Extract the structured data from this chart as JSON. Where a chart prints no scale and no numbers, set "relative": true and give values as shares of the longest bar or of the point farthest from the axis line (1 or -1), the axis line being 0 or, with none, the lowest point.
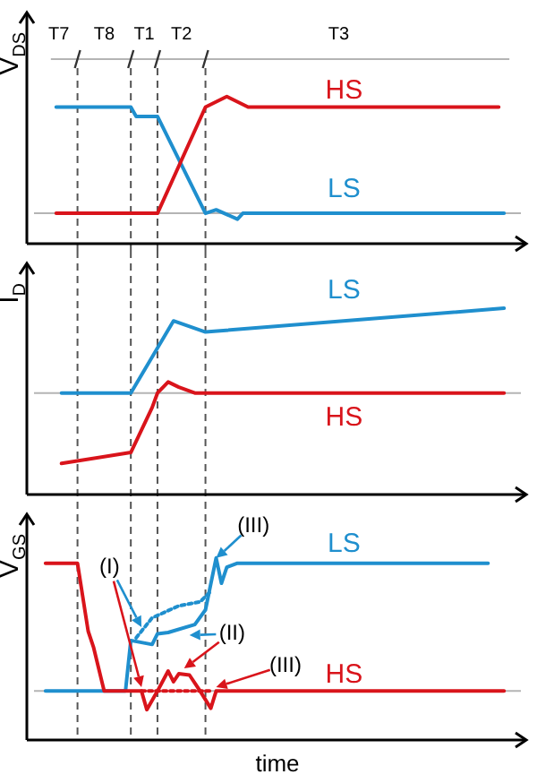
{
  "chart_data": [
    {
      "type": "line",
      "relative": true,
      "ylabel": "V$_{DS}$",
      "categories": [
        null,
        null,
        null,
        null,
        null,
        null,
        null,
        null,
        null,
        null,
        null,
        null,
        null,
        null,
        null,
        null,
        null,
        null,
        null,
        null,
        null,
        null,
        null,
        null,
        null,
        null,
        null,
        null,
        null,
        null,
        null,
        null,
        null,
        null,
        null,
        null,
        null,
        null,
        null,
        null,
        null,
        null,
        null,
        null,
        null,
        null,
        null,
        null,
        null,
        null,
        null,
        null,
        null,
        null,
        null,
        null,
        null,
        null,
        null,
        null,
        null,
        null,
        null,
        null,
        null,
        null,
        null,
        null,
        null,
        null,
        null,
        null,
        null,
        null,
        null,
        null,
        null,
        null,
        null,
        null,
        null,
        null,
        null,
        null,
        null,
        null,
        null,
        null,
        null
      ],
      "series": [
        {
          "name": "HS",
          "color": "#d9141b",
          "values": [
            null,
            null,
            null,
            0,
            null,
            null,
            null,
            null,
            null,
            null,
            null,
            null,
            null,
            null,
            null,
            null,
            null,
            null,
            null,
            null,
            null,
            null,
            0,
            null,
            null,
            null,
            null,
            null,
            null,
            null,
            null,
            0.91,
            null,
            null,
            null,
            1,
            null,
            null,
            null,
            0.91,
            null,
            null,
            null,
            null,
            null,
            null,
            null,
            null,
            null,
            null,
            null,
            null,
            null,
            null,
            null,
            null,
            null,
            null,
            null,
            null,
            null,
            null,
            null,
            null,
            null,
            null,
            null,
            null,
            null,
            null,
            null,
            null,
            null,
            null,
            null,
            null,
            null,
            null,
            null,
            null,
            null,
            null,
            null,
            null,
            null,
            null,
            0.91,
            null,
            null
          ]
        },
        {
          "name": "LS",
          "color": "#1f8fce",
          "values": [
            null,
            null,
            null,
            0.91,
            null,
            null,
            null,
            null,
            null,
            null,
            null,
            null,
            null,
            null,
            null,
            null,
            null,
            0.91,
            0.83,
            null,
            null,
            null,
            0.83,
            null,
            null,
            null,
            null,
            null,
            null,
            null,
            null,
            0,
            null,
            0.03,
            null,
            null,
            null,
            -0.05,
            0,
            null,
            null,
            null,
            null,
            null,
            null,
            null,
            null,
            null,
            null,
            null,
            null,
            null,
            null,
            null,
            null,
            null,
            null,
            null,
            null,
            null,
            null,
            null,
            null,
            null,
            null,
            null,
            null,
            null,
            null,
            null,
            null,
            null,
            null,
            null,
            null,
            null,
            null,
            null,
            null,
            null,
            null,
            null,
            null,
            null,
            null,
            null,
            null,
            0,
            null
          ]
        }
      ],
      "ref_lines": [
        {
          "axis": "y",
          "value": 0,
          "color": "#b4b4b4",
          "line_style": "solid"
        }
      ],
      "annotations": [
        "T7",
        "T8",
        "T1",
        "T2",
        "T3"
      ]
    },
    {
      "type": "line",
      "relative": true,
      "ylabel": "I$_{D}$",
      "categories": [
        null,
        null,
        null,
        null,
        null,
        null,
        null,
        null,
        null,
        null,
        null,
        null,
        null,
        null,
        null,
        null,
        null,
        null,
        null,
        null,
        null,
        null,
        null,
        null,
        null,
        null,
        null,
        null,
        null,
        null,
        null,
        null,
        null,
        null,
        null,
        null,
        null,
        null,
        null,
        null,
        null,
        null,
        null,
        null,
        null,
        null,
        null,
        null,
        null,
        null,
        null,
        null,
        null,
        null,
        null,
        null,
        null,
        null,
        null,
        null,
        null,
        null,
        null,
        null,
        null,
        null,
        null,
        null,
        null,
        null,
        null,
        null,
        null,
        null,
        null,
        null,
        null,
        null,
        null,
        null,
        null,
        null,
        null,
        null,
        null,
        null,
        null,
        null,
        null
      ],
      "series": [
        {
          "name": "HS",
          "color": "#d9141b",
          "values": [
            null,
            null,
            null,
            null,
            -0.83,
            null,
            null,
            null,
            null,
            null,
            null,
            null,
            null,
            null,
            null,
            null,
            null,
            -0.7,
            null,
            null,
            null,
            -0.17,
            0,
            null,
            0.13,
            null,
            0.07,
            null,
            null,
            0,
            null,
            null,
            null,
            null,
            null,
            null,
            null,
            null,
            null,
            null,
            null,
            null,
            null,
            null,
            null,
            null,
            null,
            null,
            null,
            null,
            null,
            null,
            null,
            null,
            null,
            null,
            null,
            null,
            null,
            null,
            null,
            null,
            null,
            null,
            null,
            null,
            null,
            null,
            null,
            null,
            null,
            null,
            null,
            null,
            null,
            null,
            null,
            null,
            null,
            null,
            null,
            null,
            null,
            null,
            null,
            null,
            null,
            0,
            null
          ]
        },
        {
          "name": "LS",
          "color": "#1f8fce",
          "values": [
            null,
            null,
            null,
            null,
            0,
            null,
            null,
            null,
            null,
            null,
            null,
            null,
            null,
            null,
            null,
            null,
            null,
            0,
            null,
            null,
            null,
            null,
            null,
            null,
            null,
            0.85,
            null,
            null,
            null,
            null,
            null,
            0.72,
            null,
            null,
            null,
            null,
            null,
            null,
            null,
            null,
            null,
            null,
            null,
            null,
            null,
            null,
            null,
            null,
            null,
            null,
            null,
            null,
            null,
            null,
            null,
            null,
            null,
            null,
            null,
            null,
            null,
            null,
            null,
            null,
            null,
            null,
            null,
            null,
            null,
            null,
            null,
            null,
            null,
            null,
            null,
            null,
            null,
            null,
            null,
            null,
            null,
            null,
            null,
            null,
            null,
            null,
            null,
            1,
            null
          ]
        }
      ],
      "ref_lines": [
        {
          "axis": "y",
          "value": 0,
          "color": "#b4b4b4",
          "line_style": "solid"
        }
      ]
    },
    {
      "type": "line",
      "relative": true,
      "ylabel": "V$_{GS}$",
      "xlabel": "time",
      "categories": [
        null,
        null,
        null,
        null,
        null,
        null,
        null,
        null,
        null,
        null,
        null,
        null,
        null,
        null,
        null,
        null,
        null,
        null,
        null,
        null,
        null,
        null,
        null,
        null,
        null,
        null,
        null,
        null,
        null,
        null,
        null,
        null,
        null,
        null,
        null,
        null,
        null,
        null,
        null,
        null,
        null,
        null,
        null,
        null,
        null,
        null,
        null,
        null,
        null,
        null,
        null,
        null,
        null,
        null,
        null,
        null,
        null,
        null,
        null,
        null,
        null,
        null,
        null,
        null,
        null,
        null,
        null,
        null,
        null,
        null,
        null,
        null,
        null,
        null,
        null,
        null,
        null,
        null,
        null,
        null,
        null,
        null,
        null,
        null,
        null,
        null,
        null,
        null,
        null
      ],
      "series": [
        {
          "name": "HS",
          "color": "#d9141b",
          "values": [
            null,
            0.96,
            null,
            null,
            null,
            null,
            null,
            0.96,
            null,
            0.45,
            0.33,
            null,
            0,
            null,
            null,
            null,
            null,
            null,
            null,
            0,
            -0.14,
            null,
            0,
            null,
            0.15,
            0.07,
            0.13,
            null,
            0.12,
            null,
            0,
            null,
            -0.13,
            0,
            null,
            null,
            null,
            null,
            null,
            null,
            null,
            null,
            null,
            null,
            null,
            null,
            null,
            null,
            null,
            null,
            null,
            null,
            null,
            null,
            null,
            null,
            null,
            null,
            null,
            null,
            null,
            null,
            null,
            null,
            null,
            null,
            null,
            null,
            null,
            null,
            null,
            null,
            null,
            null,
            null,
            null,
            null,
            null,
            null,
            null,
            null,
            null,
            null,
            null,
            null,
            null,
            null,
            0,
            null
          ]
        },
        {
          "color": "#d9141b",
          "line_style": "dotted",
          "values": [
            null,
            null,
            null,
            null,
            null,
            null,
            null,
            null,
            null,
            null,
            null,
            null,
            null,
            null,
            null,
            null,
            null,
            null,
            null,
            0,
            null,
            null,
            null,
            null,
            null,
            null,
            null,
            null,
            null,
            null,
            null,
            null,
            0,
            null,
            null,
            null,
            null,
            null,
            null,
            null,
            null,
            null,
            null,
            null,
            null,
            null,
            null,
            null,
            null,
            null,
            null,
            null,
            null,
            null,
            null,
            null,
            null,
            null,
            null,
            null,
            null,
            null,
            null,
            null,
            null,
            null,
            null,
            null,
            null,
            null,
            null,
            null,
            null,
            null,
            null,
            null,
            null,
            null,
            null,
            null,
            null,
            null,
            null,
            null,
            null,
            null,
            null,
            null,
            null
          ]
        },
        {
          "name": "LS",
          "color": "#1f8fce",
          "values": [
            null,
            0,
            null,
            null,
            null,
            null,
            null,
            null,
            null,
            null,
            null,
            null,
            null,
            null,
            null,
            null,
            0,
            0.38,
            null,
            null,
            null,
            0.35,
            0.43,
            null,
            0.44,
            null,
            null,
            null,
            null,
            0.5,
            null,
            0.61,
            null,
            1,
            0.81,
            0.93,
            null,
            0.96,
            null,
            null,
            null,
            null,
            null,
            null,
            null,
            null,
            null,
            null,
            null,
            null,
            null,
            null,
            null,
            null,
            null,
            null,
            null,
            null,
            null,
            null,
            null,
            null,
            null,
            null,
            null,
            null,
            null,
            null,
            null,
            null,
            null,
            null,
            null,
            null,
            null,
            null,
            null,
            null,
            null,
            null,
            null,
            null,
            null,
            null,
            0.96,
            null,
            null,
            null,
            null
          ]
        },
        {
          "color": "#1f8fce",
          "line_style": "dotted",
          "values": [
            null,
            null,
            null,
            null,
            null,
            null,
            null,
            null,
            null,
            null,
            null,
            null,
            null,
            null,
            null,
            null,
            null,
            null,
            0.4,
            null,
            null,
            0.55,
            null,
            null,
            null,
            null,
            0.64,
            null,
            null,
            null,
            0.67,
            null,
            0.75,
            null,
            null,
            null,
            null,
            null,
            null,
            null,
            null,
            null,
            null,
            null,
            null,
            null,
            null,
            null,
            null,
            null,
            null,
            null,
            null,
            null,
            null,
            null,
            null,
            null,
            null,
            null,
            null,
            null,
            null,
            null,
            null,
            null,
            null,
            null,
            null,
            null,
            null,
            null,
            null,
            null,
            null,
            null,
            null,
            null,
            null,
            null,
            null,
            null,
            null,
            null,
            null,
            null,
            null,
            null,
            null
          ]
        }
      ],
      "ref_lines": [
        {
          "axis": "y",
          "value": 0,
          "color": "#b4b4b4",
          "line_style": "solid"
        }
      ],
      "annotations": [
        "(I)",
        "(II)",
        "(III)",
        "(III)"
      ]
    }
  ]
}
